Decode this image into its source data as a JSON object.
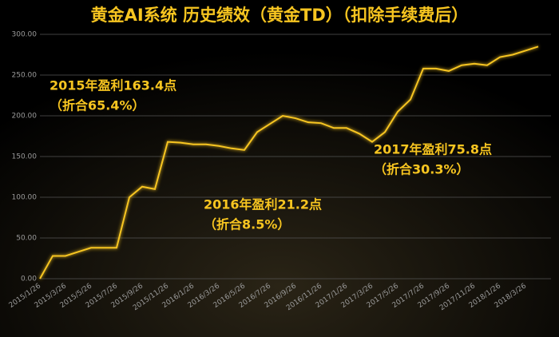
{
  "chart_data": {
    "type": "line",
    "title": "黄金AI系统 历史绩效（黄金TD）（扣除手续费后）",
    "categories": [
      "2015/1/26",
      null,
      "2015/3/26",
      null,
      "2015/5/26",
      null,
      "2015/7/26",
      null,
      "2015/9/26",
      null,
      "2015/11/26",
      null,
      "2016/1/26",
      null,
      "2016/3/26",
      null,
      "2016/5/26",
      null,
      "2016/7/26",
      null,
      "2016/9/26",
      null,
      "2016/11/26",
      null,
      "2017/1/26",
      null,
      "2017/3/26",
      null,
      "2017/5/26",
      null,
      "2017/7/26",
      null,
      "2017/9/26",
      null,
      "2017/11/26",
      null,
      "2018/1/26",
      null,
      "2018/3/26",
      null
    ],
    "values": [
      0,
      28,
      28,
      33,
      38,
      38,
      38,
      100,
      113,
      110,
      168,
      167,
      165,
      165,
      163,
      160,
      158,
      180,
      190,
      200,
      197,
      192,
      191,
      185,
      185,
      178,
      168,
      180,
      205,
      220,
      258,
      258,
      255,
      262,
      264,
      262,
      272,
      275,
      280,
      285
    ],
    "color": "#f7c520",
    "ylim": [
      0,
      300
    ],
    "yticks": [
      {
        "value": 0,
        "label": "0.00"
      },
      {
        "value": 50,
        "label": "50.00"
      },
      {
        "value": 100,
        "label": "100.00"
      },
      {
        "value": 150,
        "label": "150.00"
      },
      {
        "value": 200,
        "label": "200.00"
      },
      {
        "value": 250,
        "label": "250.00"
      },
      {
        "value": 300,
        "label": "300.00"
      }
    ],
    "grid": true,
    "annotations": [
      "2015年盈利163.4点",
      "（折合65.4%）",
      "2016年盈利21.2点",
      "（折合8.5%）",
      "2017年盈利75.8点",
      "（折合30.3%）"
    ]
  }
}
